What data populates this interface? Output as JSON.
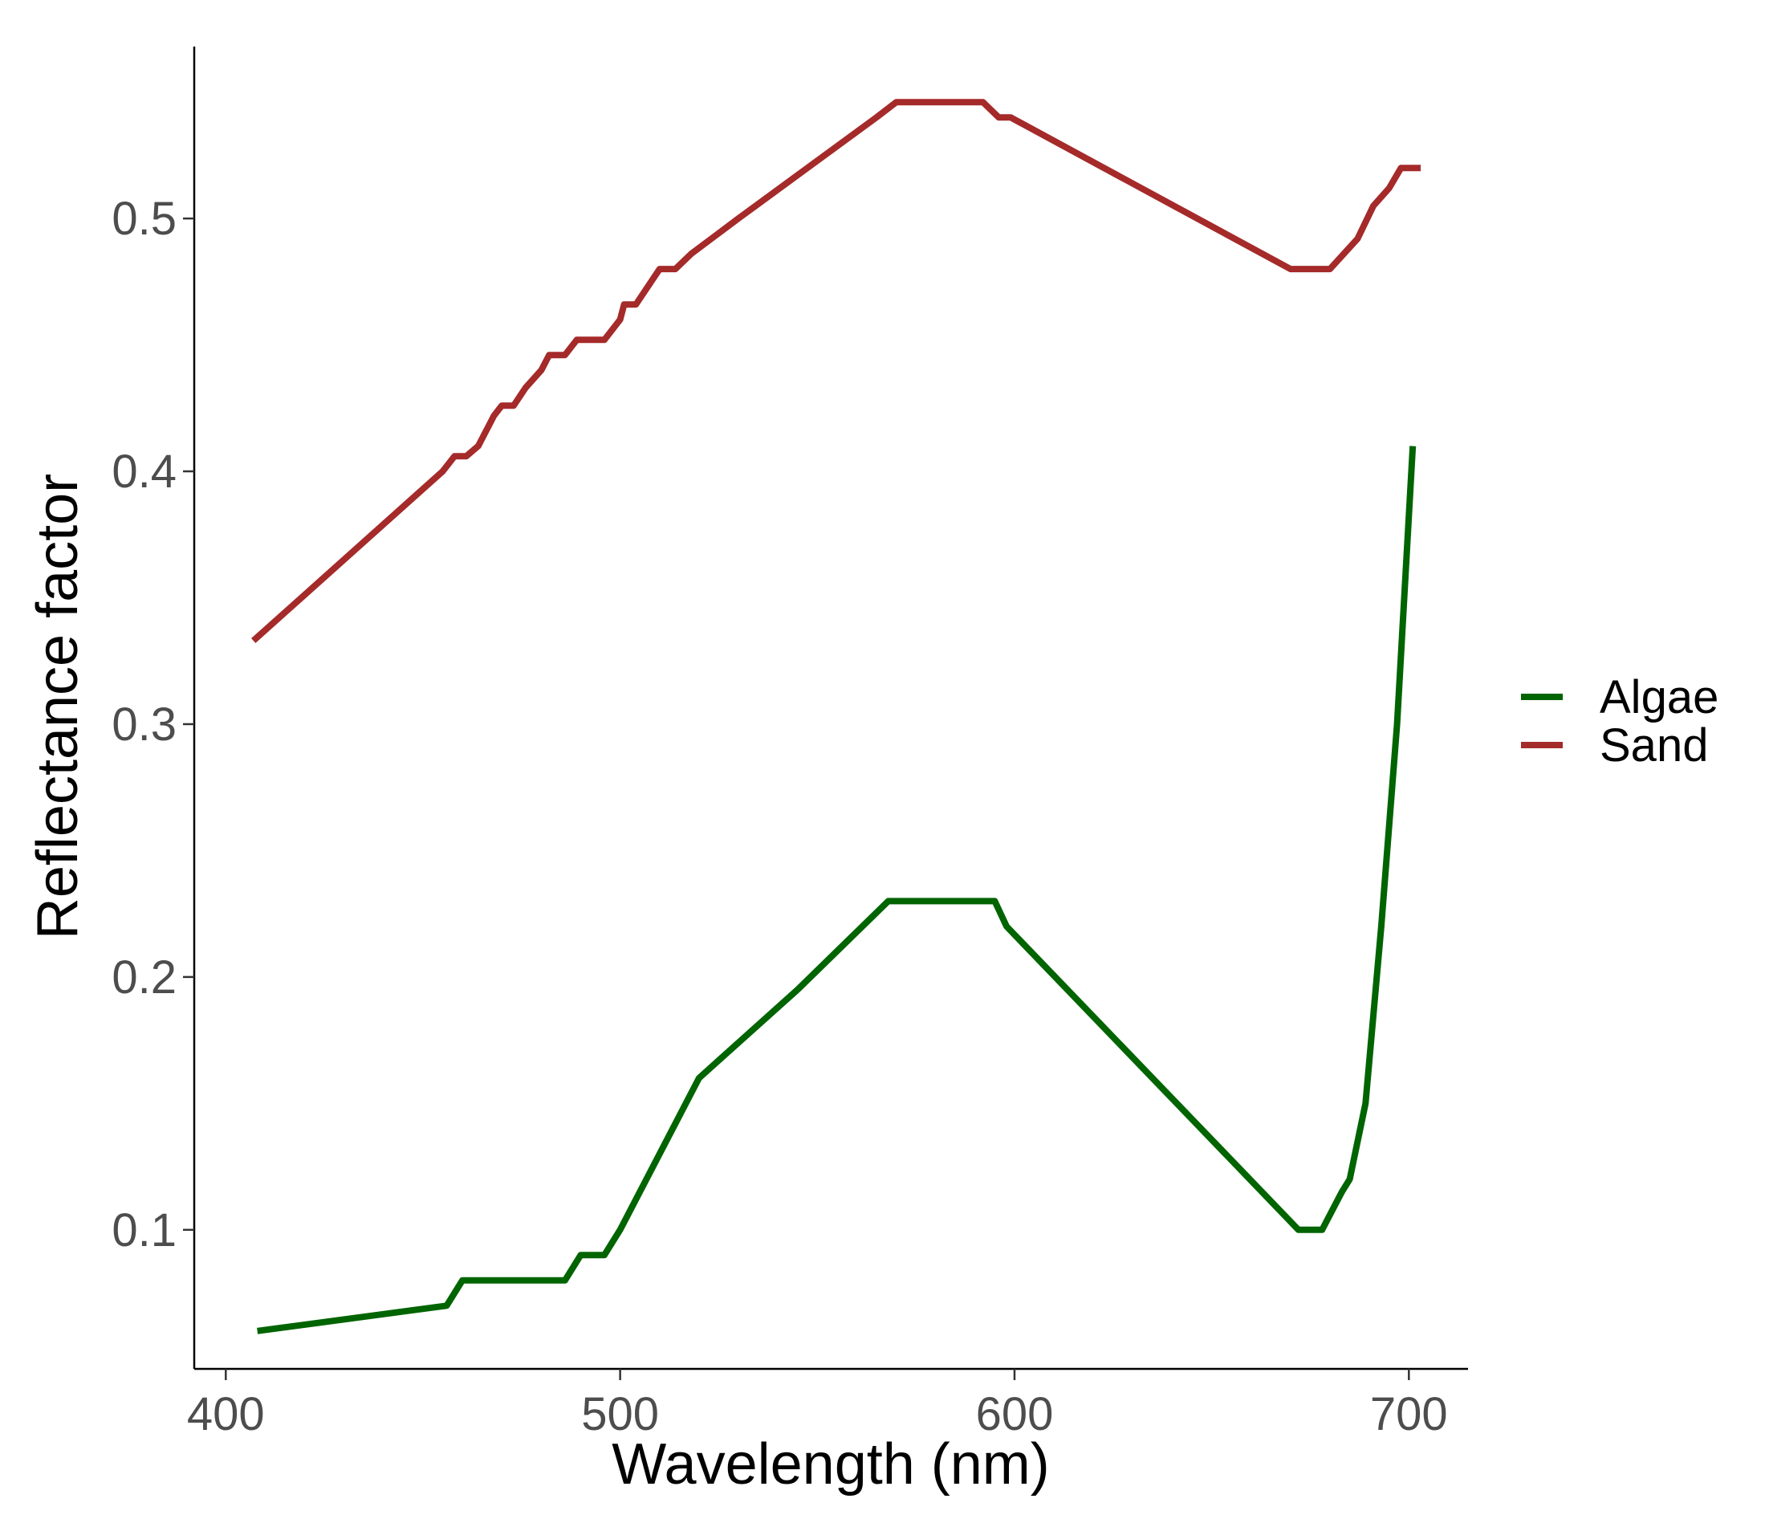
{
  "chart_data": {
    "type": "line",
    "xlabel": "Wavelength (nm)",
    "ylabel": "Reflectance factor",
    "xlim": [
      392,
      715
    ],
    "ylim": [
      0.045,
      0.568
    ],
    "x_ticks": [
      400,
      500,
      600,
      700
    ],
    "x_tick_labels": [
      "400",
      "500",
      "600",
      "700"
    ],
    "y_ticks": [
      0.1,
      0.2,
      0.3,
      0.4,
      0.5
    ],
    "y_tick_labels": [
      "0.1",
      "0.2",
      "0.3",
      "0.4",
      "0.5"
    ],
    "grid": false,
    "legend_position": "right",
    "series": [
      {
        "name": "Algae",
        "color": "#006400",
        "points": [
          [
            408,
            0.06
          ],
          [
            456,
            0.07
          ],
          [
            460,
            0.08
          ],
          [
            486,
            0.08
          ],
          [
            490,
            0.09
          ],
          [
            496,
            0.09
          ],
          [
            500,
            0.1
          ],
          [
            520,
            0.16
          ],
          [
            545,
            0.195
          ],
          [
            568,
            0.23
          ],
          [
            595,
            0.23
          ],
          [
            598,
            0.22
          ],
          [
            672,
            0.1
          ],
          [
            678,
            0.1
          ],
          [
            683,
            0.115
          ],
          [
            685,
            0.12
          ],
          [
            689,
            0.15
          ],
          [
            693,
            0.22
          ],
          [
            697,
            0.3
          ],
          [
            701,
            0.41
          ]
        ]
      },
      {
        "name": "Sand",
        "color": "#A52A2A",
        "points": [
          [
            407,
            0.333
          ],
          [
            455,
            0.4
          ],
          [
            458,
            0.406
          ],
          [
            461,
            0.406
          ],
          [
            464,
            0.41
          ],
          [
            468,
            0.422
          ],
          [
            470,
            0.426
          ],
          [
            473,
            0.426
          ],
          [
            476,
            0.433
          ],
          [
            480,
            0.44
          ],
          [
            482,
            0.446
          ],
          [
            486,
            0.446
          ],
          [
            489,
            0.452
          ],
          [
            496,
            0.452
          ],
          [
            500,
            0.46
          ],
          [
            501,
            0.466
          ],
          [
            504,
            0.466
          ],
          [
            510,
            0.48
          ],
          [
            514,
            0.48
          ],
          [
            518,
            0.486
          ],
          [
            530,
            0.5
          ],
          [
            565,
            0.54
          ],
          [
            570,
            0.546
          ],
          [
            592,
            0.546
          ],
          [
            596,
            0.54
          ],
          [
            599,
            0.54
          ],
          [
            670,
            0.48
          ],
          [
            680,
            0.48
          ],
          [
            687,
            0.492
          ],
          [
            691,
            0.505
          ],
          [
            695,
            0.512
          ],
          [
            698,
            0.52
          ],
          [
            703,
            0.52
          ]
        ]
      }
    ]
  }
}
